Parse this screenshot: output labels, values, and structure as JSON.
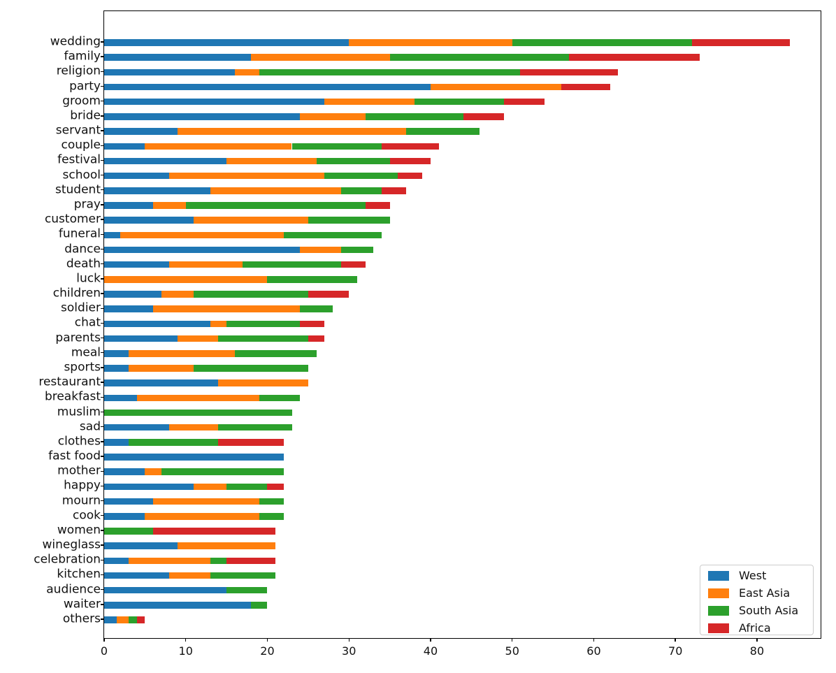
{
  "chart_data": {
    "type": "bar",
    "orientation": "horizontal",
    "stacked": true,
    "title": "",
    "xlabel": "",
    "ylabel": "",
    "grid": false,
    "xlim": [
      0,
      87.8
    ],
    "x_ticks": [
      0,
      10,
      20,
      30,
      40,
      50,
      60,
      70,
      80
    ],
    "legend_position": "lower right",
    "categories": [
      "wedding",
      "family",
      "religion",
      "party",
      "groom",
      "bride",
      "servant",
      "couple",
      "festival",
      "school",
      "student",
      "pray",
      "customer",
      "funeral",
      "dance",
      "death",
      "luck",
      "children",
      "soldier",
      "chat",
      "parents",
      "meal",
      "sports",
      "restaurant",
      "breakfast",
      "muslim",
      "sad",
      "clothes",
      "fast food",
      "mother",
      "happy",
      "mourn",
      "cook",
      "women",
      "wineglass",
      "celebration",
      "kitchen",
      "audience",
      "waiter",
      "others"
    ],
    "series": [
      {
        "name": "West",
        "color": "#1f77b4",
        "values": [
          30,
          18,
          16,
          40,
          27,
          24,
          9,
          5,
          15,
          8,
          13,
          6,
          11,
          2,
          24,
          8,
          0,
          7,
          6,
          13,
          9,
          3,
          3,
          14,
          4,
          0,
          8,
          3,
          22,
          5,
          11,
          6,
          5,
          0,
          9,
          3,
          8,
          15,
          18,
          1.5
        ]
      },
      {
        "name": "East Asia",
        "color": "#ff7f0e",
        "values": [
          20,
          17,
          3,
          16,
          11,
          8,
          28,
          18,
          11,
          19,
          16,
          4,
          14,
          20,
          5,
          9,
          20,
          4,
          18,
          2,
          5,
          13,
          8,
          11,
          15,
          0,
          6,
          0,
          0,
          2,
          4,
          13,
          14,
          0,
          12,
          10,
          5,
          0,
          0,
          1.5
        ]
      },
      {
        "name": "South Asia",
        "color": "#2ca02c",
        "values": [
          22,
          22,
          32,
          0,
          11,
          12,
          9,
          11,
          9,
          9,
          5,
          22,
          10,
          12,
          4,
          12,
          11,
          14,
          4,
          9,
          11,
          10,
          14,
          0,
          5,
          23,
          9,
          11,
          0,
          15,
          5,
          3,
          3,
          6,
          0,
          2,
          8,
          5,
          2,
          1
        ]
      },
      {
        "name": "Africa",
        "color": "#d62728",
        "values": [
          12,
          16,
          12,
          6,
          5,
          5,
          0,
          7,
          5,
          3,
          3,
          3,
          0,
          0,
          0,
          3,
          0,
          5,
          0,
          3,
          2,
          0,
          0,
          0,
          0,
          0,
          0,
          8,
          0,
          0,
          2,
          0,
          0,
          15,
          0,
          6,
          0,
          0,
          0,
          1
        ]
      }
    ]
  }
}
